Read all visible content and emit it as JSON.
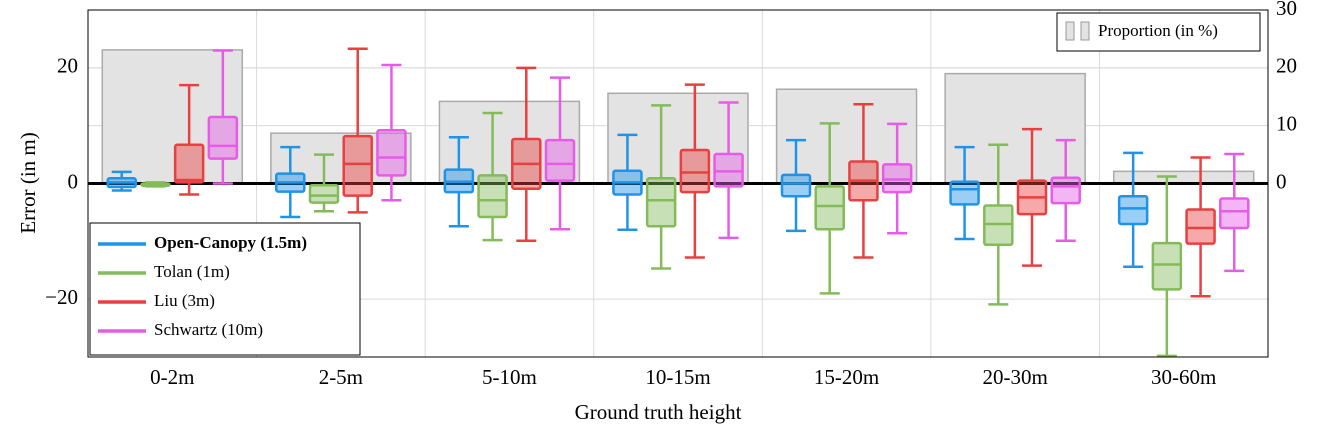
{
  "chart_data": {
    "type": "box",
    "x_label": "Ground truth height",
    "y_label": "Error (in m)",
    "categories": [
      "0-2m",
      "2-5m",
      "5-10m",
      "10-15m",
      "15-20m",
      "20-30m",
      "30-60m"
    ],
    "ylim": [
      -30,
      30
    ],
    "yticks": [
      {
        "value": -20,
        "label": "−20"
      },
      0,
      20
    ],
    "y2lim": [
      -30,
      30
    ],
    "y2ticks": [
      0,
      10,
      20,
      30
    ],
    "grid": true,
    "proportion": {
      "name": "Proportion (in %)",
      "color": "#e3e3e3",
      "axis": "y2",
      "values": [
        23.1,
        8.7,
        14.2,
        15.6,
        16.3,
        19.0,
        2.1
      ]
    },
    "series": [
      {
        "name": "Open-Canopy (1.5m)",
        "color": "#1f93e8",
        "whislo": [
          -1.2,
          -5.8,
          -7.4,
          -8.0,
          -8.2,
          -9.6,
          -14.4
        ],
        "q1": [
          -0.6,
          -1.4,
          -1.5,
          -1.9,
          -2.2,
          -3.6,
          -7.0
        ],
        "median": [
          0.2,
          0.2,
          0.3,
          0.2,
          0,
          -1.0,
          -4.3
        ],
        "q3": [
          0.9,
          1.7,
          2.4,
          2.2,
          1.5,
          0.3,
          -2.2
        ],
        "whishi": [
          2.0,
          6.3,
          8.0,
          8.4,
          7.5,
          6.3,
          5.3
        ]
      },
      {
        "name": "Tolan (1m)",
        "color": "#84bb5a",
        "whislo": [
          -0.5,
          -4.8,
          -9.8,
          -14.7,
          -19.0,
          -20.9,
          -29.8
        ],
        "q1": [
          -0.4,
          -3.3,
          -5.8,
          -7.4,
          -7.9,
          -10.6,
          -18.3
        ],
        "median": [
          -0.2,
          -2.1,
          -2.9,
          -2.9,
          -3.9,
          -7.0,
          -14.0
        ],
        "q3": [
          0,
          -0.3,
          1.4,
          0.9,
          -0.5,
          -3.8,
          -10.3
        ],
        "whishi": [
          0.2,
          5.0,
          12.2,
          13.5,
          10.4,
          6.7,
          1.2
        ]
      },
      {
        "name": "Liu (3m)",
        "color": "#e84040",
        "whislo": [
          -1.9,
          -5.0,
          -9.9,
          -12.8,
          -12.8,
          -14.2,
          -19.5
        ],
        "q1": [
          0.2,
          -2.1,
          -0.9,
          -1.5,
          -2.9,
          -5.3,
          -10.4
        ],
        "median": [
          0.6,
          3.4,
          3.4,
          1.9,
          0.5,
          -2.4,
          -7.7
        ],
        "q3": [
          6.7,
          8.2,
          7.7,
          5.8,
          3.8,
          0.5,
          -4.5
        ],
        "whishi": [
          17,
          23.3,
          20,
          17.1,
          13.7,
          9.4,
          4.5
        ]
      },
      {
        "name": "Schwartz (10m)",
        "color": "#e65ce6",
        "whislo": [
          0,
          -2.9,
          -7.9,
          -9.4,
          -8.6,
          -9.9,
          -15.1
        ],
        "q1": [
          4.3,
          1.4,
          0.5,
          -0.5,
          -1.5,
          -3.4,
          -7.7
        ],
        "median": [
          6.5,
          4.5,
          3.4,
          2.1,
          0.7,
          -0.5,
          -4.8
        ],
        "q3": [
          11.5,
          9.2,
          7.5,
          5.1,
          3.3,
          1.0,
          -2.6
        ],
        "whishi": [
          23,
          20.5,
          18.3,
          14.0,
          10.3,
          7.5,
          5.1
        ]
      }
    ]
  }
}
